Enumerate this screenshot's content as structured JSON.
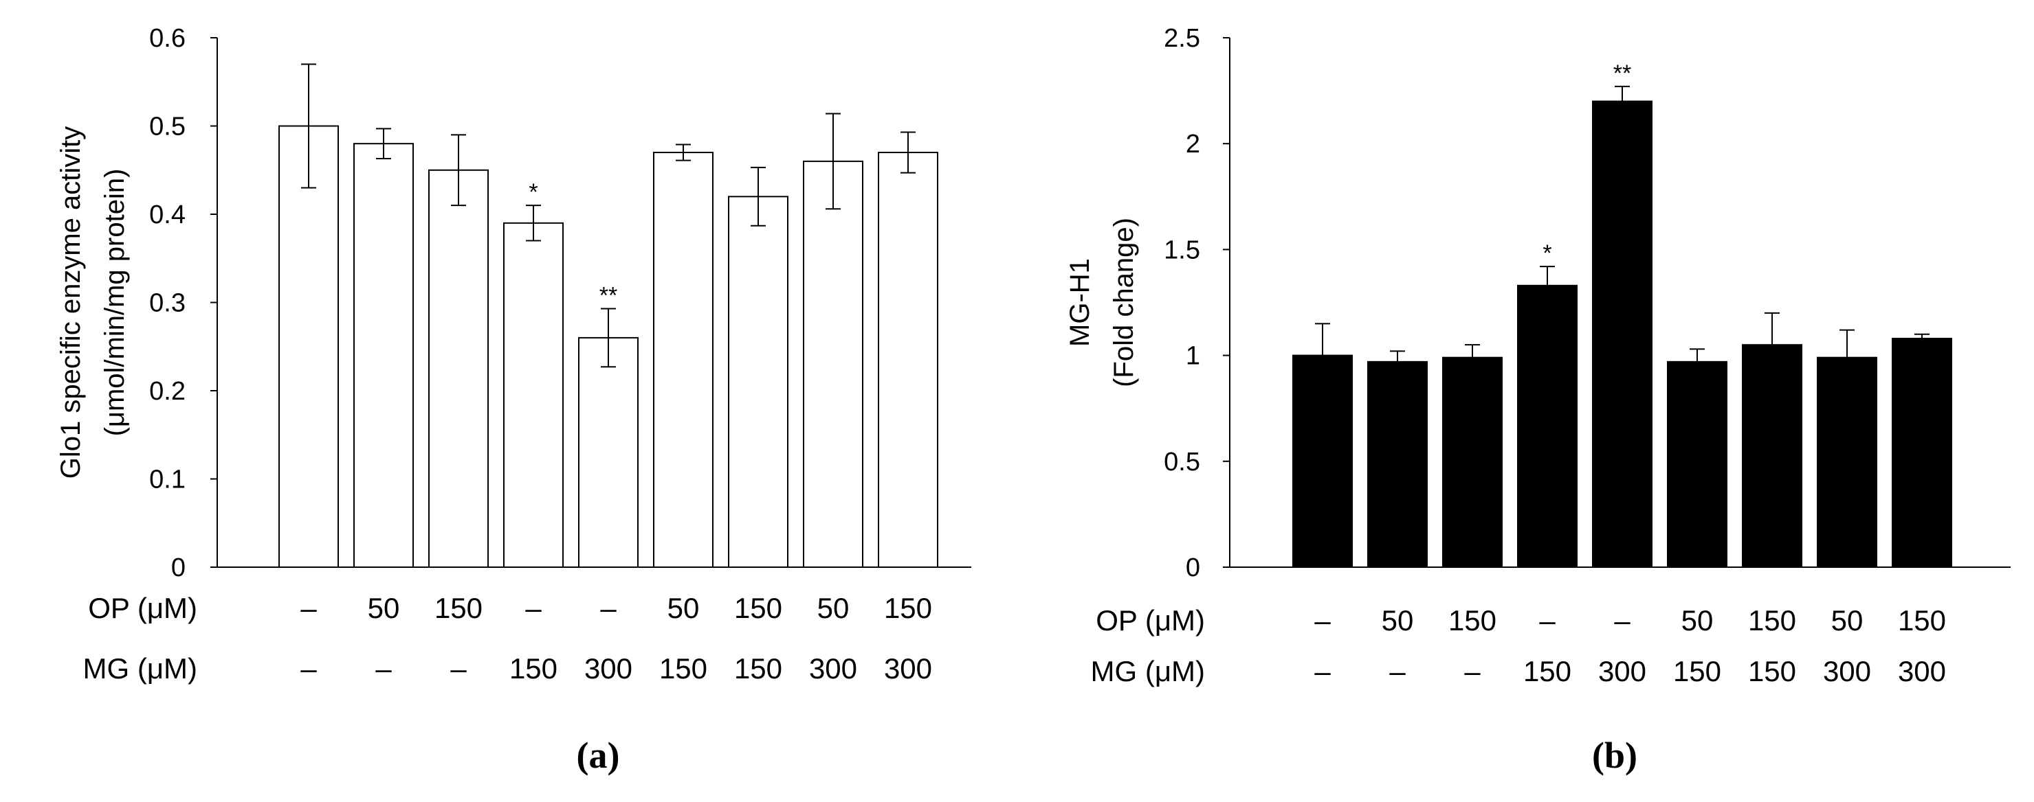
{
  "chart_data": [
    {
      "type": "bar",
      "panel_label": "(a)",
      "ylabel_lines": [
        "Glo1 specific enzyme activity",
        "(μmol/min/mg  protein)"
      ],
      "ylim": [
        0,
        0.6
      ],
      "yticks": [
        0,
        0.1,
        0.2,
        0.3,
        0.4,
        0.5,
        0.6
      ],
      "ytick_labels": [
        "0",
        "0.1",
        "0.2",
        "0.3",
        "0.4",
        "0.5",
        "0.6"
      ],
      "bar_fill": "#ffffff",
      "bar_stroke": "#000000",
      "values": [
        0.5,
        0.48,
        0.45,
        0.39,
        0.26,
        0.47,
        0.42,
        0.46,
        0.47
      ],
      "errors": [
        0.07,
        0.017,
        0.04,
        0.02,
        0.033,
        0.009,
        0.033,
        0.054,
        0.023
      ],
      "significance": [
        "",
        "",
        "",
        "*",
        "**",
        "",
        "",
        "",
        ""
      ],
      "rows": [
        {
          "label": "OP (μM)",
          "values": [
            "–",
            "50",
            "150",
            "–",
            "–",
            "50",
            "150",
            "50",
            "150"
          ]
        },
        {
          "label": "MG (μM)",
          "values": [
            "–",
            "–",
            "–",
            "150",
            "300",
            "150",
            "150",
            "300",
            "300"
          ]
        }
      ]
    },
    {
      "type": "bar",
      "panel_label": "(b)",
      "ylabel_lines": [
        "MG-H1",
        "(Fold change)"
      ],
      "ylim": [
        0,
        2.5
      ],
      "yticks": [
        0,
        0.5,
        1,
        1.5,
        2,
        2.5
      ],
      "ytick_labels": [
        "0",
        "0.5",
        "1",
        "1.5",
        "2",
        "2.5"
      ],
      "bar_fill": "#000000",
      "bar_stroke": "#000000",
      "values": [
        1.0,
        0.97,
        0.99,
        1.33,
        2.2,
        0.97,
        1.05,
        0.99,
        1.08
      ],
      "errors": [
        0.15,
        0.05,
        0.06,
        0.09,
        0.07,
        0.06,
        0.15,
        0.13,
        0.02
      ],
      "significance": [
        "",
        "",
        "",
        "*",
        "**",
        "",
        "",
        "",
        ""
      ],
      "rows": [
        {
          "label": "OP (μM)",
          "values": [
            "–",
            "50",
            "150",
            "–",
            "–",
            "50",
            "150",
            "50",
            "150"
          ]
        },
        {
          "label": "MG (μM)",
          "values": [
            "–",
            "–",
            "–",
            "150",
            "300",
            "150",
            "150",
            "300",
            "300"
          ]
        }
      ]
    }
  ]
}
